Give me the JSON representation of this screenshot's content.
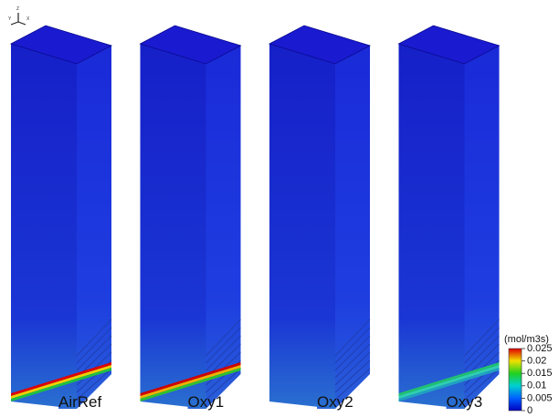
{
  "panels": [
    {
      "label": "AirRef"
    },
    {
      "label": "Oxy1"
    },
    {
      "label": "Oxy2"
    },
    {
      "label": "Oxy3"
    }
  ],
  "colorbar": {
    "unit": "(mol/m3s)",
    "lim": [
      0,
      0.025
    ],
    "ticks": [
      0.025,
      0.02,
      0.015,
      0.01,
      0.005,
      0
    ]
  },
  "axes_triad": [
    "Y",
    "Z",
    "X"
  ]
}
